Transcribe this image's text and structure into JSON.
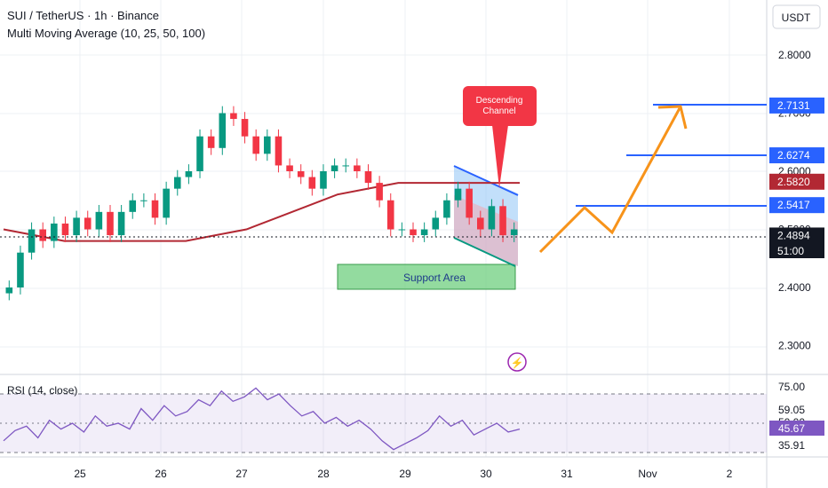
{
  "header": {
    "symbol_line": "SUI / TetherUS · 1h · Binance",
    "indicator_line": "Multi Moving Average (10, 25, 50, 100)",
    "currency_button": "USDT"
  },
  "rsi": {
    "label": "RSI (14, close)",
    "scale": [
      "75.00",
      "59.05",
      "50.00",
      "35.91"
    ],
    "value": "45.67",
    "upper_band": 70,
    "mid_band": 50,
    "lower_band": 30
  },
  "annotations": {
    "callout": "Descending Channel",
    "support": "Support Area"
  },
  "price_labels": [
    {
      "text": "2.7131",
      "price": 2.7131,
      "color": "#2962ff"
    },
    {
      "text": "2.6274",
      "price": 2.6274,
      "color": "#2962ff"
    },
    {
      "text": "2.5820",
      "price": 2.582,
      "color": "#b22833"
    },
    {
      "text": "2.5417",
      "price": 2.5417,
      "color": "#2962ff"
    },
    {
      "text": "2.4894",
      "price": 2.4894,
      "color": "#131722"
    }
  ],
  "countdown": "51:00",
  "colors": {
    "up": "#089981",
    "down": "#f23645",
    "ma": "#b22833",
    "projection": "#f7931a",
    "target_lines": "#2962ff",
    "rsi_line": "#7e57c2",
    "support_fill": "#6fcf7f",
    "callout": "#f23645"
  },
  "chart_data": [
    {
      "type": "candlestick",
      "title": "SUI / TetherUS · 1h · Binance",
      "ylim": [
        2.26,
        2.86
      ],
      "y_ticks": [
        "2.8000",
        "2.7000",
        "2.6000",
        "2.5000",
        "2.4000",
        "2.3000"
      ],
      "x_ticks": [
        "25",
        "26",
        "27",
        "28",
        "29",
        "30",
        "31",
        "Nov",
        "2"
      ],
      "approx_closes": [
        2.4,
        2.46,
        2.5,
        2.48,
        2.51,
        2.49,
        2.52,
        2.5,
        2.53,
        2.49,
        2.53,
        2.55,
        2.55,
        2.52,
        2.57,
        2.59,
        2.6,
        2.66,
        2.64,
        2.7,
        2.69,
        2.66,
        2.63,
        2.66,
        2.61,
        2.6,
        2.59,
        2.57,
        2.6,
        2.61,
        2.61,
        2.6,
        2.58,
        2.55,
        2.5,
        2.5,
        2.49,
        2.5,
        2.52,
        2.55,
        2.57,
        2.52,
        2.5,
        2.54,
        2.49,
        2.5
      ],
      "moving_average": [
        2.5,
        2.49,
        2.48,
        2.48,
        2.48,
        2.48,
        2.48,
        2.49,
        2.5,
        2.52,
        2.54,
        2.56,
        2.57,
        2.58,
        2.58,
        2.58,
        2.58,
        2.58
      ],
      "target_levels": [
        2.5417,
        2.6274,
        2.7131
      ],
      "projection_path": [
        2.46,
        2.54,
        2.5,
        2.71,
        2.66
      ],
      "support_zone": [
        2.4,
        2.44
      ],
      "channel_upper": [
        2.6,
        2.56
      ],
      "channel_lower": [
        2.48,
        2.44
      ]
    },
    {
      "type": "line",
      "title": "RSI (14, close)",
      "ylim": [
        25,
        80
      ],
      "values": [
        38,
        45,
        48,
        40,
        52,
        46,
        50,
        44,
        55,
        48,
        50,
        46,
        60,
        52,
        62,
        55,
        58,
        66,
        62,
        72,
        65,
        68,
        74,
        66,
        70,
        62,
        55,
        58,
        50,
        54,
        48,
        52,
        46,
        38,
        32,
        36,
        40,
        45,
        55,
        48,
        52,
        42,
        46,
        50,
        44,
        46
      ]
    }
  ]
}
